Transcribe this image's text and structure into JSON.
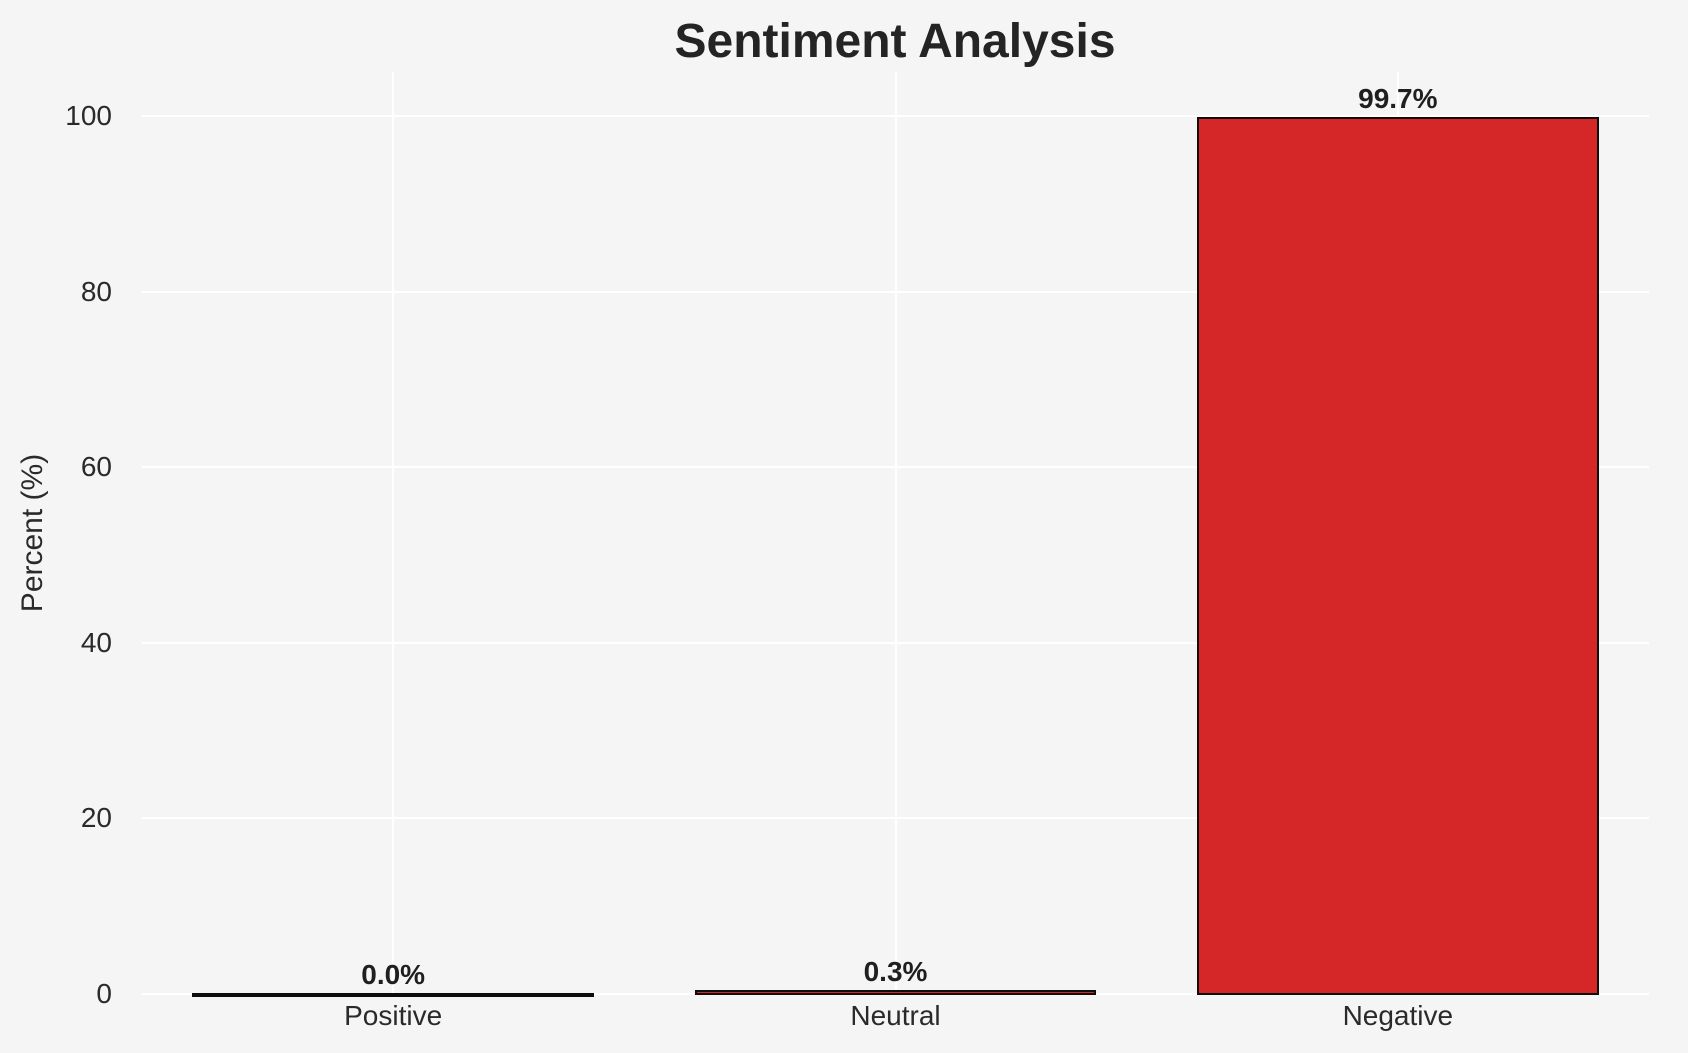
{
  "chart_data": {
    "type": "bar",
    "title": "Sentiment Analysis",
    "xlabel": "",
    "ylabel": "Percent (%)",
    "categories": [
      "Positive",
      "Neutral",
      "Negative"
    ],
    "values": [
      0.0,
      0.3,
      99.7
    ],
    "value_labels": [
      "0.0%",
      "0.3%",
      "99.7%"
    ],
    "yticks": [
      0,
      20,
      40,
      60,
      80,
      100
    ],
    "ylim": [
      0,
      105
    ],
    "grid": true,
    "grid_axis": "both",
    "legend": false,
    "colors": {
      "bar_fill": "#d62728",
      "bar_edge": "#0d0d0d",
      "background": "#f5f5f6",
      "gridline": "#ffffff",
      "text": "#262626"
    }
  }
}
